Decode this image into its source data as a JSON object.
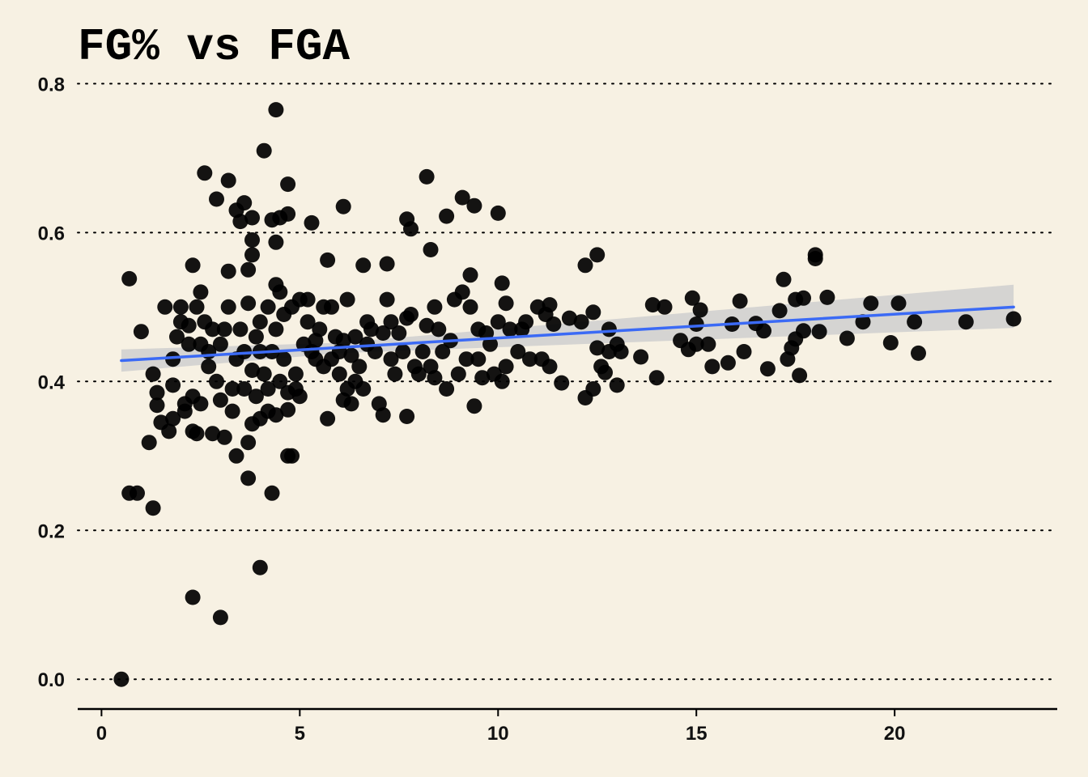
{
  "chart_data": {
    "type": "scatter",
    "title": "FG% vs FGA",
    "xlabel": "",
    "ylabel": "",
    "xlim": [
      -0.6,
      24.1
    ],
    "ylim": [
      -0.04,
      0.82
    ],
    "xticks": [
      0,
      5,
      10,
      15,
      20
    ],
    "yticks": [
      0.0,
      0.2,
      0.4,
      0.6,
      0.8
    ],
    "xtick_labels": [
      "0",
      "5",
      "10",
      "15",
      "20"
    ],
    "ytick_labels": [
      "0.0",
      "0.2",
      "0.4",
      "0.6",
      "0.8"
    ],
    "grid": "horizontal dotted",
    "legend": "none",
    "colors": {
      "background": "#f7f1e3",
      "points": "#000000",
      "fit_line": "#3b6af5",
      "confidence_band": "#cfcfcf"
    },
    "trend_line": {
      "method": "linear",
      "start": [
        0.5,
        0.428
      ],
      "end": [
        23.0,
        0.5
      ],
      "band_start": [
        0.5,
        0.413,
        0.443
      ],
      "band_mid": [
        6.0,
        0.438,
        0.452
      ],
      "band_end": [
        23.0,
        0.472,
        0.53
      ]
    },
    "points": [
      [
        0.5,
        0.0
      ],
      [
        0.7,
        0.538
      ],
      [
        0.7,
        0.25
      ],
      [
        0.9,
        0.25
      ],
      [
        1.0,
        0.467
      ],
      [
        1.2,
        0.318
      ],
      [
        1.3,
        0.23
      ],
      [
        1.3,
        0.41
      ],
      [
        1.4,
        0.385
      ],
      [
        1.4,
        0.368
      ],
      [
        1.5,
        0.345
      ],
      [
        1.6,
        0.5
      ],
      [
        1.7,
        0.333
      ],
      [
        1.8,
        0.35
      ],
      [
        1.8,
        0.395
      ],
      [
        1.8,
        0.43
      ],
      [
        1.9,
        0.46
      ],
      [
        2.0,
        0.48
      ],
      [
        2.0,
        0.5
      ],
      [
        2.1,
        0.36
      ],
      [
        2.1,
        0.37
      ],
      [
        2.2,
        0.45
      ],
      [
        2.2,
        0.475
      ],
      [
        2.3,
        0.38
      ],
      [
        2.3,
        0.333
      ],
      [
        2.3,
        0.556
      ],
      [
        2.3,
        0.11
      ],
      [
        2.4,
        0.5
      ],
      [
        2.4,
        0.33
      ],
      [
        2.5,
        0.45
      ],
      [
        2.5,
        0.52
      ],
      [
        2.5,
        0.37
      ],
      [
        2.6,
        0.68
      ],
      [
        2.6,
        0.48
      ],
      [
        2.7,
        0.44
      ],
      [
        2.7,
        0.42
      ],
      [
        2.8,
        0.47
      ],
      [
        2.8,
        0.33
      ],
      [
        2.9,
        0.4
      ],
      [
        2.9,
        0.645
      ],
      [
        3.0,
        0.083
      ],
      [
        3.0,
        0.375
      ],
      [
        3.0,
        0.45
      ],
      [
        3.1,
        0.325
      ],
      [
        3.1,
        0.47
      ],
      [
        3.2,
        0.548
      ],
      [
        3.2,
        0.67
      ],
      [
        3.2,
        0.5
      ],
      [
        3.3,
        0.36
      ],
      [
        3.3,
        0.39
      ],
      [
        3.4,
        0.43
      ],
      [
        3.4,
        0.3
      ],
      [
        3.4,
        0.63
      ],
      [
        3.5,
        0.47
      ],
      [
        3.5,
        0.615
      ],
      [
        3.6,
        0.64
      ],
      [
        3.6,
        0.39
      ],
      [
        3.6,
        0.44
      ],
      [
        3.7,
        0.505
      ],
      [
        3.7,
        0.27
      ],
      [
        3.7,
        0.318
      ],
      [
        3.7,
        0.55
      ],
      [
        3.8,
        0.62
      ],
      [
        3.8,
        0.59
      ],
      [
        3.8,
        0.57
      ],
      [
        3.8,
        0.415
      ],
      [
        3.8,
        0.343
      ],
      [
        3.9,
        0.46
      ],
      [
        3.9,
        0.38
      ],
      [
        4.0,
        0.48
      ],
      [
        4.0,
        0.44
      ],
      [
        4.0,
        0.15
      ],
      [
        4.0,
        0.35
      ],
      [
        4.1,
        0.71
      ],
      [
        4.1,
        0.41
      ],
      [
        4.2,
        0.5
      ],
      [
        4.2,
        0.36
      ],
      [
        4.2,
        0.39
      ],
      [
        4.3,
        0.617
      ],
      [
        4.3,
        0.25
      ],
      [
        4.3,
        0.44
      ],
      [
        4.4,
        0.765
      ],
      [
        4.4,
        0.587
      ],
      [
        4.4,
        0.53
      ],
      [
        4.4,
        0.47
      ],
      [
        4.4,
        0.355
      ],
      [
        4.5,
        0.62
      ],
      [
        4.5,
        0.52
      ],
      [
        4.5,
        0.4
      ],
      [
        4.6,
        0.49
      ],
      [
        4.6,
        0.43
      ],
      [
        4.7,
        0.625
      ],
      [
        4.7,
        0.665
      ],
      [
        4.7,
        0.3
      ],
      [
        4.7,
        0.385
      ],
      [
        4.7,
        0.362
      ],
      [
        4.8,
        0.3
      ],
      [
        4.8,
        0.5
      ],
      [
        4.9,
        0.41
      ],
      [
        4.9,
        0.39
      ],
      [
        5.0,
        0.51
      ],
      [
        5.0,
        0.38
      ],
      [
        5.1,
        0.45
      ],
      [
        5.2,
        0.51
      ],
      [
        5.2,
        0.48
      ],
      [
        5.3,
        0.613
      ],
      [
        5.3,
        0.44
      ],
      [
        5.4,
        0.455
      ],
      [
        5.4,
        0.43
      ],
      [
        5.5,
        0.47
      ],
      [
        5.6,
        0.5
      ],
      [
        5.6,
        0.42
      ],
      [
        5.7,
        0.563
      ],
      [
        5.7,
        0.35
      ],
      [
        5.8,
        0.5
      ],
      [
        5.8,
        0.43
      ],
      [
        5.9,
        0.46
      ],
      [
        6.0,
        0.44
      ],
      [
        6.0,
        0.41
      ],
      [
        6.1,
        0.635
      ],
      [
        6.1,
        0.375
      ],
      [
        6.1,
        0.455
      ],
      [
        6.2,
        0.51
      ],
      [
        6.2,
        0.39
      ],
      [
        6.3,
        0.37
      ],
      [
        6.3,
        0.435
      ],
      [
        6.4,
        0.4
      ],
      [
        6.4,
        0.46
      ],
      [
        6.5,
        0.42
      ],
      [
        6.6,
        0.556
      ],
      [
        6.6,
        0.39
      ],
      [
        6.7,
        0.48
      ],
      [
        6.7,
        0.45
      ],
      [
        6.8,
        0.47
      ],
      [
        6.9,
        0.44
      ],
      [
        7.0,
        0.37
      ],
      [
        7.1,
        0.355
      ],
      [
        7.1,
        0.465
      ],
      [
        7.2,
        0.558
      ],
      [
        7.2,
        0.51
      ],
      [
        7.3,
        0.48
      ],
      [
        7.3,
        0.43
      ],
      [
        7.4,
        0.41
      ],
      [
        7.5,
        0.465
      ],
      [
        7.6,
        0.44
      ],
      [
        7.7,
        0.485
      ],
      [
        7.7,
        0.353
      ],
      [
        7.7,
        0.618
      ],
      [
        7.8,
        0.605
      ],
      [
        7.8,
        0.49
      ],
      [
        7.9,
        0.42
      ],
      [
        8.0,
        0.41
      ],
      [
        8.1,
        0.44
      ],
      [
        8.2,
        0.675
      ],
      [
        8.2,
        0.475
      ],
      [
        8.3,
        0.577
      ],
      [
        8.3,
        0.42
      ],
      [
        8.4,
        0.5
      ],
      [
        8.4,
        0.405
      ],
      [
        8.5,
        0.47
      ],
      [
        8.6,
        0.44
      ],
      [
        8.7,
        0.622
      ],
      [
        8.7,
        0.39
      ],
      [
        8.8,
        0.455
      ],
      [
        8.9,
        0.51
      ],
      [
        9.0,
        0.41
      ],
      [
        9.1,
        0.52
      ],
      [
        9.1,
        0.647
      ],
      [
        9.2,
        0.43
      ],
      [
        9.3,
        0.543
      ],
      [
        9.3,
        0.5
      ],
      [
        9.4,
        0.636
      ],
      [
        9.4,
        0.367
      ],
      [
        9.5,
        0.47
      ],
      [
        9.5,
        0.43
      ],
      [
        9.6,
        0.405
      ],
      [
        9.7,
        0.465
      ],
      [
        9.8,
        0.45
      ],
      [
        9.9,
        0.41
      ],
      [
        10.0,
        0.626
      ],
      [
        10.0,
        0.48
      ],
      [
        10.1,
        0.532
      ],
      [
        10.1,
        0.4
      ],
      [
        10.2,
        0.42
      ],
      [
        10.2,
        0.505
      ],
      [
        10.3,
        0.47
      ],
      [
        10.5,
        0.44
      ],
      [
        10.6,
        0.47
      ],
      [
        10.7,
        0.48
      ],
      [
        10.8,
        0.43
      ],
      [
        11.0,
        0.5
      ],
      [
        11.1,
        0.43
      ],
      [
        11.2,
        0.49
      ],
      [
        11.3,
        0.42
      ],
      [
        11.3,
        0.503
      ],
      [
        11.4,
        0.477
      ],
      [
        11.6,
        0.398
      ],
      [
        11.8,
        0.485
      ],
      [
        12.1,
        0.48
      ],
      [
        12.2,
        0.556
      ],
      [
        12.2,
        0.378
      ],
      [
        12.4,
        0.493
      ],
      [
        12.4,
        0.39
      ],
      [
        12.5,
        0.57
      ],
      [
        12.5,
        0.445
      ],
      [
        12.6,
        0.42
      ],
      [
        12.7,
        0.412
      ],
      [
        12.8,
        0.47
      ],
      [
        12.8,
        0.44
      ],
      [
        13.0,
        0.395
      ],
      [
        13.0,
        0.45
      ],
      [
        13.1,
        0.44
      ],
      [
        13.6,
        0.433
      ],
      [
        13.9,
        0.503
      ],
      [
        14.0,
        0.405
      ],
      [
        14.2,
        0.5
      ],
      [
        14.6,
        0.455
      ],
      [
        14.8,
        0.443
      ],
      [
        14.9,
        0.512
      ],
      [
        15.0,
        0.45
      ],
      [
        15.0,
        0.477
      ],
      [
        15.1,
        0.496
      ],
      [
        15.3,
        0.45
      ],
      [
        15.4,
        0.42
      ],
      [
        15.8,
        0.425
      ],
      [
        15.9,
        0.477
      ],
      [
        16.1,
        0.508
      ],
      [
        16.2,
        0.44
      ],
      [
        16.5,
        0.478
      ],
      [
        16.7,
        0.468
      ],
      [
        16.8,
        0.417
      ],
      [
        17.1,
        0.495
      ],
      [
        17.2,
        0.537
      ],
      [
        17.3,
        0.43
      ],
      [
        17.4,
        0.445
      ],
      [
        17.5,
        0.51
      ],
      [
        17.5,
        0.457
      ],
      [
        17.6,
        0.408
      ],
      [
        17.7,
        0.512
      ],
      [
        17.7,
        0.468
      ],
      [
        18.0,
        0.565
      ],
      [
        18.0,
        0.57
      ],
      [
        18.1,
        0.467
      ],
      [
        18.3,
        0.513
      ],
      [
        18.8,
        0.458
      ],
      [
        19.2,
        0.48
      ],
      [
        19.4,
        0.505
      ],
      [
        19.9,
        0.452
      ],
      [
        20.1,
        0.505
      ],
      [
        20.5,
        0.48
      ],
      [
        20.6,
        0.438
      ],
      [
        21.8,
        0.48
      ],
      [
        23.0,
        0.484
      ]
    ]
  }
}
